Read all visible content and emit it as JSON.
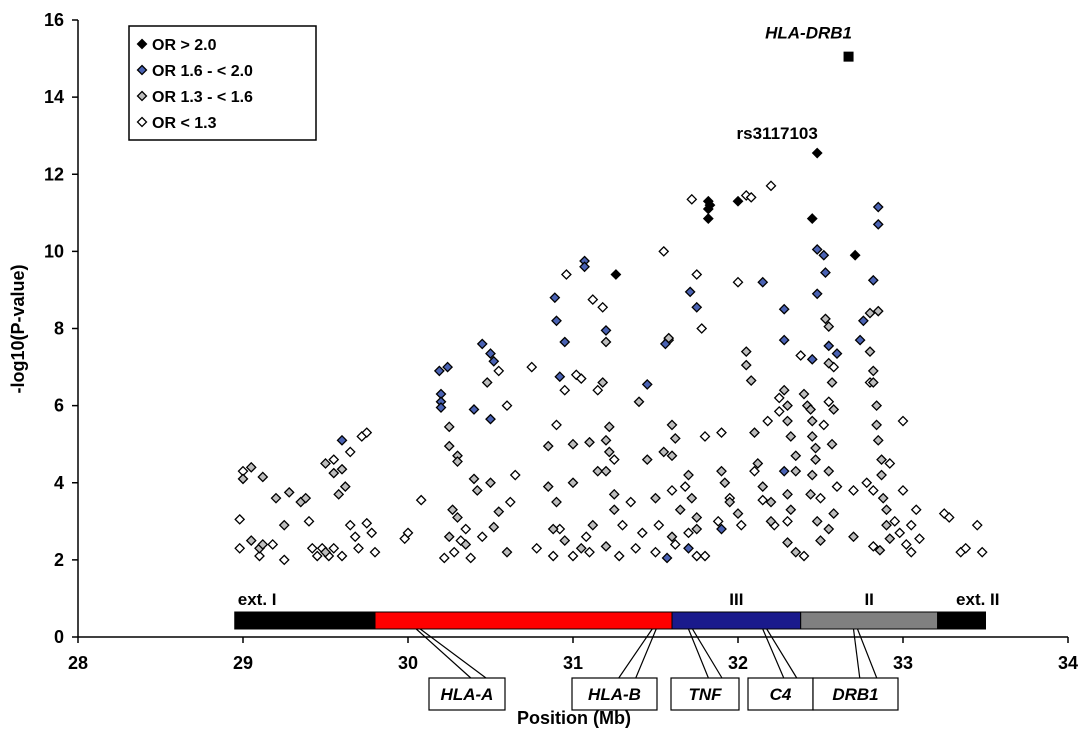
{
  "chart_data": {
    "type": "scatter",
    "title": "",
    "xlabel": "Position (Mb)",
    "ylabel": "-log10(P-value)",
    "xlim": [
      28,
      34
    ],
    "ylim": [
      0,
      16
    ],
    "x_ticks": [
      "28",
      "29",
      "30",
      "31",
      "32",
      "33",
      "34"
    ],
    "y_ticks": [
      "0",
      "2",
      "4",
      "6",
      "8",
      "10",
      "12",
      "14",
      "16"
    ],
    "legend": {
      "placement": "top-left",
      "entries": [
        {
          "key": "gt2",
          "label": "OR > 2.0",
          "fill": "#000000"
        },
        {
          "key": "b16",
          "label": "OR 1.6 - < 2.0",
          "fill": "#4a62b3"
        },
        {
          "key": "b13",
          "label": "OR 1.3 - < 1.6",
          "fill": "#bdbdbd"
        },
        {
          "key": "lt13",
          "label": "OR < 1.3",
          "fill": "#ffffff"
        }
      ]
    },
    "annotations": [
      {
        "text": "HLA-DRB1",
        "x": 32.67,
        "y": 15.05,
        "marker": "square",
        "italic": true
      },
      {
        "text": "rs3117103",
        "x": 32.48,
        "y": 12.55,
        "marker": "none",
        "italic": false
      }
    ],
    "series": [
      {
        "name": "OR > 2.0",
        "key": "gt2",
        "points": [
          [
            31.26,
            9.4
          ],
          [
            31.82,
            11.3
          ],
          [
            31.82,
            11.1
          ],
          [
            31.82,
            10.85
          ],
          [
            31.83,
            11.2
          ],
          [
            32.0,
            11.3
          ],
          [
            32.45,
            10.85
          ],
          [
            32.48,
            12.55
          ],
          [
            32.71,
            9.9
          ]
        ]
      },
      {
        "name": "OR 1.6 - < 2.0",
        "key": "b16",
        "points": [
          [
            29.6,
            5.1
          ],
          [
            30.19,
            6.9
          ],
          [
            30.2,
            6.3
          ],
          [
            30.2,
            6.1
          ],
          [
            30.2,
            5.95
          ],
          [
            30.24,
            7.0
          ],
          [
            30.4,
            5.9
          ],
          [
            30.45,
            7.6
          ],
          [
            30.5,
            7.35
          ],
          [
            30.5,
            5.65
          ],
          [
            30.52,
            7.15
          ],
          [
            30.89,
            8.8
          ],
          [
            30.9,
            8.2
          ],
          [
            30.92,
            6.75
          ],
          [
            30.95,
            7.65
          ],
          [
            31.07,
            9.75
          ],
          [
            31.07,
            9.6
          ],
          [
            31.2,
            7.95
          ],
          [
            31.45,
            6.55
          ],
          [
            31.57,
            2.05
          ],
          [
            31.56,
            7.6
          ],
          [
            31.7,
            2.3
          ],
          [
            31.71,
            8.95
          ],
          [
            31.75,
            8.55
          ],
          [
            31.9,
            2.8
          ],
          [
            32.15,
            9.2
          ],
          [
            32.28,
            8.5
          ],
          [
            32.28,
            7.7
          ],
          [
            32.28,
            4.3
          ],
          [
            32.45,
            7.2
          ],
          [
            32.48,
            10.05
          ],
          [
            32.48,
            8.9
          ],
          [
            32.52,
            9.9
          ],
          [
            32.53,
            9.45
          ],
          [
            32.55,
            7.55
          ],
          [
            32.6,
            7.35
          ],
          [
            32.74,
            7.7
          ],
          [
            32.76,
            8.2
          ],
          [
            32.82,
            9.25
          ],
          [
            32.85,
            11.15
          ],
          [
            32.85,
            10.7
          ]
        ]
      },
      {
        "name": "OR 1.3 - < 1.6",
        "key": "b13",
        "points": [
          [
            29.0,
            4.1
          ],
          [
            29.05,
            4.4
          ],
          [
            29.12,
            4.15
          ],
          [
            29.2,
            3.6
          ],
          [
            29.28,
            3.75
          ],
          [
            29.25,
            2.9
          ],
          [
            29.35,
            3.5
          ],
          [
            29.38,
            3.6
          ],
          [
            29.05,
            2.5
          ],
          [
            29.1,
            2.3
          ],
          [
            29.12,
            2.4
          ],
          [
            29.5,
            4.5
          ],
          [
            29.55,
            4.25
          ],
          [
            29.58,
            3.7
          ],
          [
            29.6,
            4.35
          ],
          [
            29.62,
            3.9
          ],
          [
            29.5,
            2.2
          ],
          [
            30.25,
            5.45
          ],
          [
            30.25,
            4.95
          ],
          [
            30.3,
            4.7
          ],
          [
            30.3,
            4.55
          ],
          [
            30.27,
            3.3
          ],
          [
            30.3,
            3.1
          ],
          [
            30.35,
            2.4
          ],
          [
            30.25,
            2.6
          ],
          [
            30.4,
            4.1
          ],
          [
            30.42,
            3.8
          ],
          [
            30.5,
            4.0
          ],
          [
            30.55,
            3.25
          ],
          [
            30.52,
            2.85
          ],
          [
            30.6,
            2.2
          ],
          [
            30.48,
            6.6
          ],
          [
            30.85,
            4.95
          ],
          [
            30.85,
            3.9
          ],
          [
            30.9,
            3.5
          ],
          [
            30.88,
            2.8
          ],
          [
            30.95,
            2.5
          ],
          [
            31.0,
            5.0
          ],
          [
            31.0,
            4.0
          ],
          [
            31.05,
            2.3
          ],
          [
            31.1,
            5.05
          ],
          [
            31.12,
            2.9
          ],
          [
            31.15,
            4.3
          ],
          [
            31.2,
            7.65
          ],
          [
            31.22,
            5.45
          ],
          [
            31.2,
            5.1
          ],
          [
            31.22,
            4.8
          ],
          [
            31.2,
            4.3
          ],
          [
            31.25,
            3.7
          ],
          [
            31.25,
            3.3
          ],
          [
            31.2,
            2.35
          ],
          [
            31.18,
            6.6
          ],
          [
            31.4,
            6.1
          ],
          [
            31.45,
            4.6
          ],
          [
            31.5,
            3.6
          ],
          [
            31.55,
            4.8
          ],
          [
            31.58,
            7.75
          ],
          [
            31.6,
            5.5
          ],
          [
            31.62,
            5.15
          ],
          [
            31.6,
            4.7
          ],
          [
            31.65,
            3.3
          ],
          [
            31.6,
            2.6
          ],
          [
            31.7,
            4.2
          ],
          [
            31.72,
            3.6
          ],
          [
            31.75,
            3.1
          ],
          [
            31.75,
            2.8
          ],
          [
            31.9,
            4.3
          ],
          [
            31.92,
            4.0
          ],
          [
            31.95,
            3.5
          ],
          [
            32.0,
            3.2
          ],
          [
            32.05,
            7.4
          ],
          [
            32.05,
            7.05
          ],
          [
            32.08,
            6.65
          ],
          [
            32.1,
            5.3
          ],
          [
            32.12,
            4.5
          ],
          [
            32.15,
            3.9
          ],
          [
            32.2,
            3.5
          ],
          [
            32.2,
            3.0
          ],
          [
            32.28,
            6.4
          ],
          [
            32.3,
            6.0
          ],
          [
            32.3,
            5.6
          ],
          [
            32.32,
            5.2
          ],
          [
            32.35,
            4.7
          ],
          [
            32.35,
            4.3
          ],
          [
            32.3,
            3.7
          ],
          [
            32.32,
            3.3
          ],
          [
            32.35,
            2.2
          ],
          [
            32.3,
            2.45
          ],
          [
            32.4,
            6.3
          ],
          [
            32.42,
            6.0
          ],
          [
            32.44,
            5.9
          ],
          [
            32.45,
            5.6
          ],
          [
            32.45,
            5.2
          ],
          [
            32.47,
            4.9
          ],
          [
            32.47,
            4.6
          ],
          [
            32.45,
            4.2
          ],
          [
            32.44,
            3.7
          ],
          [
            32.48,
            3.0
          ],
          [
            32.5,
            2.5
          ],
          [
            32.53,
            8.25
          ],
          [
            32.55,
            8.05
          ],
          [
            32.55,
            7.1
          ],
          [
            32.57,
            6.6
          ],
          [
            32.58,
            5.9
          ],
          [
            32.57,
            5.0
          ],
          [
            32.55,
            4.3
          ],
          [
            32.58,
            3.2
          ],
          [
            32.55,
            2.8
          ],
          [
            32.8,
            8.4
          ],
          [
            32.8,
            7.4
          ],
          [
            32.82,
            6.9
          ],
          [
            32.82,
            6.6
          ],
          [
            32.84,
            6.0
          ],
          [
            32.84,
            5.5
          ],
          [
            32.85,
            5.1
          ],
          [
            32.87,
            4.6
          ],
          [
            32.87,
            4.2
          ],
          [
            32.88,
            3.6
          ],
          [
            32.9,
            3.3
          ],
          [
            32.9,
            2.9
          ],
          [
            32.92,
            2.55
          ],
          [
            32.86,
            2.25
          ],
          [
            32.7,
            2.6
          ],
          [
            32.85,
            8.45
          ]
        ]
      },
      {
        "name": "OR < 1.3",
        "key": "lt13",
        "points": [
          [
            28.98,
            3.05
          ],
          [
            29.0,
            4.3
          ],
          [
            28.98,
            2.3
          ],
          [
            29.1,
            2.1
          ],
          [
            29.18,
            2.4
          ],
          [
            29.25,
            2.0
          ],
          [
            29.4,
            3.0
          ],
          [
            29.42,
            2.3
          ],
          [
            29.45,
            2.1
          ],
          [
            29.48,
            2.3
          ],
          [
            29.52,
            2.1
          ],
          [
            29.55,
            2.3
          ],
          [
            29.6,
            2.1
          ],
          [
            29.65,
            2.9
          ],
          [
            29.68,
            2.6
          ],
          [
            29.7,
            2.3
          ],
          [
            29.72,
            5.2
          ],
          [
            29.75,
            5.3
          ],
          [
            29.75,
            2.95
          ],
          [
            29.78,
            2.7
          ],
          [
            29.8,
            2.2
          ],
          [
            29.55,
            4.6
          ],
          [
            29.65,
            4.8
          ],
          [
            29.98,
            2.55
          ],
          [
            30.0,
            2.7
          ],
          [
            30.08,
            3.55
          ],
          [
            30.22,
            2.05
          ],
          [
            30.28,
            2.2
          ],
          [
            30.32,
            2.5
          ],
          [
            30.35,
            2.8
          ],
          [
            30.38,
            2.05
          ],
          [
            30.45,
            2.6
          ],
          [
            30.6,
            6.0
          ],
          [
            30.62,
            3.5
          ],
          [
            30.65,
            4.2
          ],
          [
            30.55,
            6.9
          ],
          [
            30.75,
            7.0
          ],
          [
            30.78,
            2.3
          ],
          [
            30.88,
            2.1
          ],
          [
            30.9,
            5.5
          ],
          [
            30.92,
            2.8
          ],
          [
            30.95,
            6.4
          ],
          [
            30.96,
            9.4
          ],
          [
            31.0,
            2.1
          ],
          [
            31.02,
            6.8
          ],
          [
            31.05,
            6.7
          ],
          [
            31.08,
            2.6
          ],
          [
            31.1,
            2.2
          ],
          [
            31.12,
            8.75
          ],
          [
            31.15,
            6.4
          ],
          [
            31.18,
            8.55
          ],
          [
            31.25,
            4.6
          ],
          [
            31.28,
            2.1
          ],
          [
            31.3,
            2.9
          ],
          [
            31.35,
            3.5
          ],
          [
            31.38,
            2.3
          ],
          [
            31.42,
            2.7
          ],
          [
            31.5,
            2.2
          ],
          [
            31.52,
            2.9
          ],
          [
            31.55,
            10.0
          ],
          [
            31.58,
            7.7
          ],
          [
            31.6,
            3.8
          ],
          [
            31.62,
            2.4
          ],
          [
            31.68,
            3.9
          ],
          [
            31.7,
            2.7
          ],
          [
            31.72,
            11.35
          ],
          [
            31.75,
            9.4
          ],
          [
            31.78,
            8.0
          ],
          [
            31.75,
            2.1
          ],
          [
            31.8,
            5.2
          ],
          [
            31.8,
            2.1
          ],
          [
            31.88,
            3.0
          ],
          [
            31.9,
            5.3
          ],
          [
            31.95,
            3.6
          ],
          [
            32.0,
            9.2
          ],
          [
            32.02,
            2.9
          ],
          [
            32.05,
            11.45
          ],
          [
            32.08,
            11.4
          ],
          [
            32.1,
            4.3
          ],
          [
            32.15,
            3.55
          ],
          [
            32.18,
            5.6
          ],
          [
            32.2,
            11.7
          ],
          [
            32.22,
            2.9
          ],
          [
            32.25,
            6.2
          ],
          [
            32.25,
            5.85
          ],
          [
            32.3,
            3.0
          ],
          [
            32.38,
            7.3
          ],
          [
            32.4,
            2.1
          ],
          [
            32.5,
            3.6
          ],
          [
            32.52,
            5.5
          ],
          [
            32.55,
            6.1
          ],
          [
            32.58,
            7.0
          ],
          [
            32.6,
            3.9
          ],
          [
            32.7,
            3.8
          ],
          [
            32.78,
            4.0
          ],
          [
            32.8,
            6.6
          ],
          [
            32.82,
            3.8
          ],
          [
            32.82,
            2.35
          ],
          [
            32.92,
            4.5
          ],
          [
            32.95,
            3.0
          ],
          [
            32.98,
            2.7
          ],
          [
            33.0,
            3.8
          ],
          [
            33.0,
            5.6
          ],
          [
            33.02,
            2.4
          ],
          [
            33.05,
            2.9
          ],
          [
            33.05,
            2.2
          ],
          [
            33.08,
            3.3
          ],
          [
            33.1,
            2.55
          ],
          [
            33.25,
            3.2
          ],
          [
            33.28,
            3.1
          ],
          [
            33.35,
            2.2
          ],
          [
            33.38,
            2.3
          ],
          [
            33.45,
            2.9
          ],
          [
            33.48,
            2.2
          ]
        ]
      }
    ],
    "regions": [
      {
        "label": "ext. I",
        "start": 28.95,
        "end": 29.8,
        "color": "#000000"
      },
      {
        "label": "",
        "start": 29.8,
        "end": 31.6,
        "color": "#ff0000"
      },
      {
        "label": "III",
        "start": 31.6,
        "end": 32.38,
        "color": "#1a1a8c"
      },
      {
        "label": "II",
        "start": 32.38,
        "end": 33.21,
        "color": "#808080"
      },
      {
        "label": "ext. II",
        "start": 33.21,
        "end": 33.5,
        "color": "#000000"
      }
    ],
    "genes": [
      {
        "label": "HLA-A",
        "pos": 30.05
      },
      {
        "label": "HLA-B",
        "pos": 31.48
      },
      {
        "label": "TNF",
        "pos": 31.7
      },
      {
        "label": "C4",
        "pos": 32.15
      },
      {
        "label": "DRB1",
        "pos": 32.7
      }
    ]
  }
}
